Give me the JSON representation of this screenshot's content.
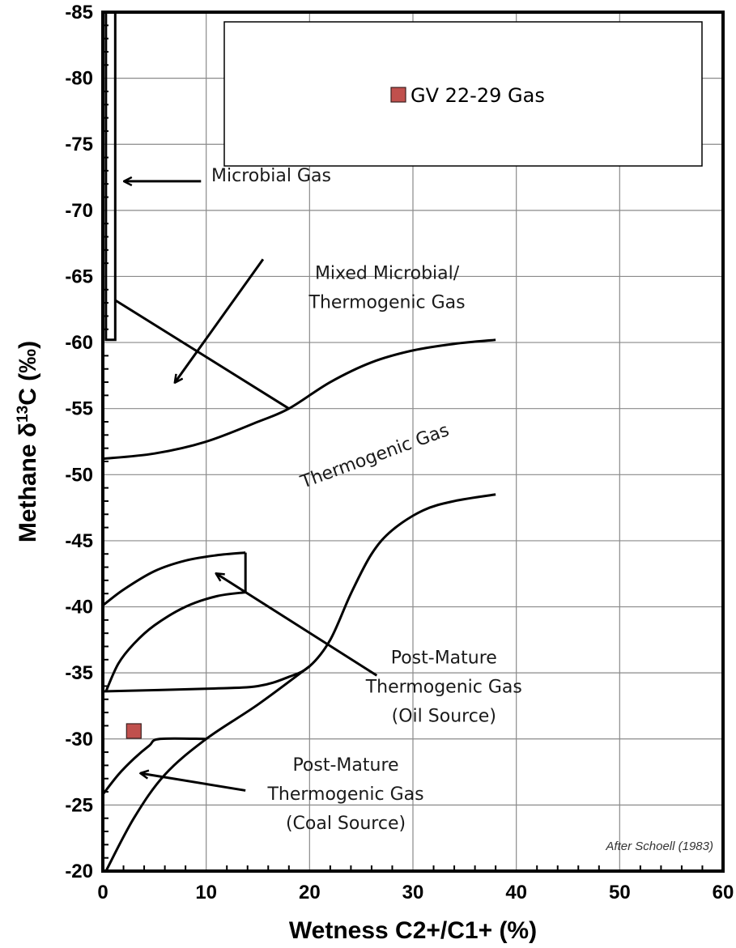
{
  "chart_data": {
    "type": "scatter",
    "xlabel": "Wetness C2+/C1+ (%)",
    "ylabel_main": "Methane  δ",
    "ylabel_sup": "13",
    "ylabel_tail": "C (‰)",
    "xlim": [
      0,
      60
    ],
    "ylim": [
      -20,
      -85
    ],
    "x_ticks": [
      0,
      10,
      20,
      30,
      40,
      50,
      60
    ],
    "x_tick_labels": [
      "0",
      "10",
      "20",
      "30",
      "40",
      "50",
      "60"
    ],
    "y_ticks": [
      -20,
      -25,
      -30,
      -35,
      -40,
      -45,
      -50,
      -55,
      -60,
      -65,
      -70,
      -75,
      -80,
      -85
    ],
    "y_tick_labels": [
      "-20",
      "-25",
      "-30",
      "-35",
      "-40",
      "-45",
      "-50",
      "-55",
      "-60",
      "-65",
      "-70",
      "-75",
      "-80",
      "-85"
    ],
    "grid": true,
    "legend": {
      "placement": "top-right",
      "entries": [
        "GV 22-29 Gas"
      ]
    },
    "series": [
      {
        "name": "GV 22-29 Gas",
        "marker": "square",
        "color": "#c0504d",
        "points": [
          {
            "x": 3.0,
            "y": -30.6
          }
        ]
      }
    ],
    "field_outlines": [
      {
        "id": "microbial-boundary",
        "points": [
          [
            0.3,
            -85
          ],
          [
            0.3,
            -60.2
          ],
          [
            1.2,
            -60.2
          ],
          [
            1.2,
            -85
          ]
        ]
      },
      {
        "id": "mixed-line",
        "points": [
          [
            1.2,
            -63.2
          ],
          [
            18,
            -55
          ]
        ]
      },
      {
        "id": "thermogenic-upper",
        "points": [
          [
            0,
            -51.2
          ],
          [
            5,
            -51.6
          ],
          [
            10,
            -52.5
          ],
          [
            15,
            -54
          ],
          [
            18,
            -55
          ],
          [
            22,
            -57
          ],
          [
            26,
            -58.5
          ],
          [
            30,
            -59.4
          ],
          [
            34,
            -59.9
          ],
          [
            38,
            -60.2
          ]
        ]
      },
      {
        "id": "thermogenic-lower",
        "points": [
          [
            0,
            -33.6
          ],
          [
            10,
            -33.8
          ],
          [
            15,
            -34
          ],
          [
            18,
            -34.7
          ],
          [
            20,
            -35.5
          ],
          [
            22,
            -37.5
          ],
          [
            24,
            -41
          ],
          [
            26,
            -44
          ],
          [
            28,
            -45.8
          ],
          [
            31,
            -47.3
          ],
          [
            34,
            -48
          ],
          [
            38,
            -48.5
          ]
        ]
      },
      {
        "id": "oil-upper",
        "points": [
          [
            0,
            -40.1
          ],
          [
            2,
            -41.3
          ],
          [
            5,
            -42.7
          ],
          [
            8,
            -43.5
          ],
          [
            11,
            -43.9
          ],
          [
            13.8,
            -44.1
          ]
        ]
      },
      {
        "id": "oil-right",
        "points": [
          [
            13.8,
            -44.1
          ],
          [
            13.8,
            -41.1
          ]
        ]
      },
      {
        "id": "oil-inner",
        "points": [
          [
            13.8,
            -41.1
          ],
          [
            11,
            -40.8
          ],
          [
            8,
            -40
          ],
          [
            5,
            -38.6
          ],
          [
            3,
            -37.2
          ],
          [
            1.5,
            -35.7
          ],
          [
            0.3,
            -33.6
          ]
        ]
      },
      {
        "id": "coal-upper",
        "points": [
          [
            0,
            -25.8
          ],
          [
            1.5,
            -27.3
          ],
          [
            3,
            -28.5
          ],
          [
            4.5,
            -29.5
          ],
          [
            5.5,
            -30
          ],
          [
            10,
            -30
          ]
        ]
      },
      {
        "id": "coal-lower",
        "points": [
          [
            0.3,
            -20
          ],
          [
            3,
            -24
          ],
          [
            6,
            -27.3
          ],
          [
            10,
            -30
          ],
          [
            15,
            -32.6
          ],
          [
            20,
            -35.5
          ]
        ]
      }
    ],
    "annotations": [
      {
        "id": "microbial",
        "lines": [
          "Microbial Gas"
        ],
        "pos": [
          10.5,
          -72.2
        ],
        "anchor": "start"
      },
      {
        "id": "mixed",
        "lines": [
          "Mixed Microbial/",
          "Thermogenic Gas"
        ],
        "pos": [
          27.5,
          -64.8
        ],
        "anchor": "middle"
      },
      {
        "id": "thermogenic",
        "lines": [
          "Thermogenic Gas"
        ],
        "pos": [
          26.5,
          -51
        ],
        "anchor": "middle",
        "rotate": -20
      },
      {
        "id": "oil",
        "lines": [
          "Post-Mature",
          "Thermogenic Gas",
          "(Oil Source)"
        ],
        "pos": [
          33,
          -35.7
        ],
        "anchor": "middle"
      },
      {
        "id": "coal",
        "lines": [
          "Post-Mature",
          "Thermogenic Gas",
          "(Coal Source)"
        ],
        "pos": [
          23.5,
          -27.6
        ],
        "anchor": "middle"
      }
    ],
    "arrows": [
      {
        "id": "arrow-microbial",
        "from": [
          9.5,
          -72.2
        ],
        "to": [
          2.1,
          -72.2
        ]
      },
      {
        "id": "arrow-mixed",
        "from": [
          15.5,
          -66.3
        ],
        "to": [
          7.0,
          -57.0
        ]
      },
      {
        "id": "arrow-oil",
        "from": [
          26.5,
          -34.8
        ],
        "to": [
          11.0,
          -42.5
        ]
      },
      {
        "id": "arrow-coal",
        "from": [
          13.8,
          -26.1
        ],
        "to": [
          3.7,
          -27.4
        ]
      }
    ],
    "credit": "After Schoell (1983)"
  }
}
